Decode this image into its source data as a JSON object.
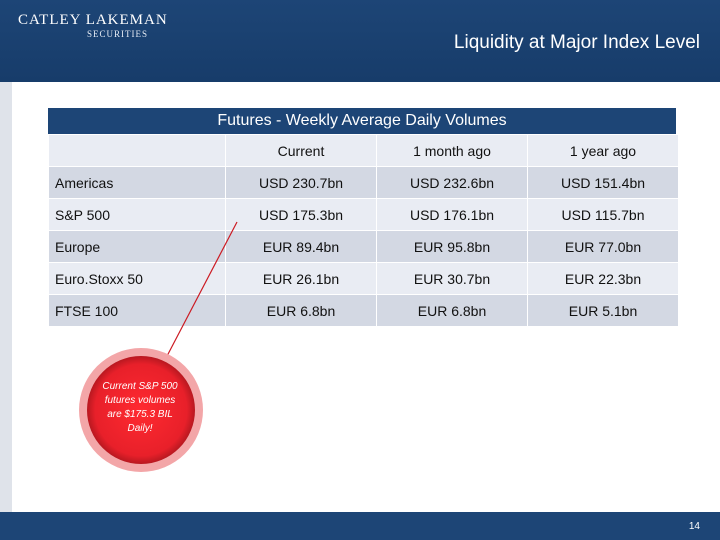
{
  "header": {
    "logo_name": "CATLEY LAKEMAN",
    "logo_sub": "SECURITIES",
    "title": "Liquidity at Major Index Level"
  },
  "table": {
    "title": "Futures - Weekly Average Daily Volumes",
    "columns": [
      "",
      "Current",
      "1 month ago",
      "1 year ago"
    ],
    "rows": [
      {
        "label": "Americas",
        "current": "USD 230.7bn",
        "month_ago": "USD 232.6bn",
        "year_ago": "USD 151.4bn"
      },
      {
        "label": "S&P 500",
        "current": "USD 175.3bn",
        "month_ago": "USD 176.1bn",
        "year_ago": "USD 115.7bn"
      },
      {
        "label": "Europe",
        "current": "EUR 89.4bn",
        "month_ago": "EUR 95.8bn",
        "year_ago": "EUR 77.0bn"
      },
      {
        "label": "Euro.Stoxx 50",
        "current": "EUR 26.1bn",
        "month_ago": "EUR 30.7bn",
        "year_ago": "EUR 22.3bn"
      },
      {
        "label": "FTSE 100",
        "current": "EUR 6.8bn",
        "month_ago": "EUR 6.8bn",
        "year_ago": "EUR 5.1bn"
      }
    ]
  },
  "callout": {
    "text": "Current S&P 500 futures volumes are $175.3 BIL Daily!"
  },
  "footer": {
    "page_number": "14"
  },
  "colors": {
    "brand_navy": "#1d4576",
    "row_light": "#e9ecf3",
    "row_dark": "#d3d8e3",
    "callout_red": "#e8202a"
  }
}
